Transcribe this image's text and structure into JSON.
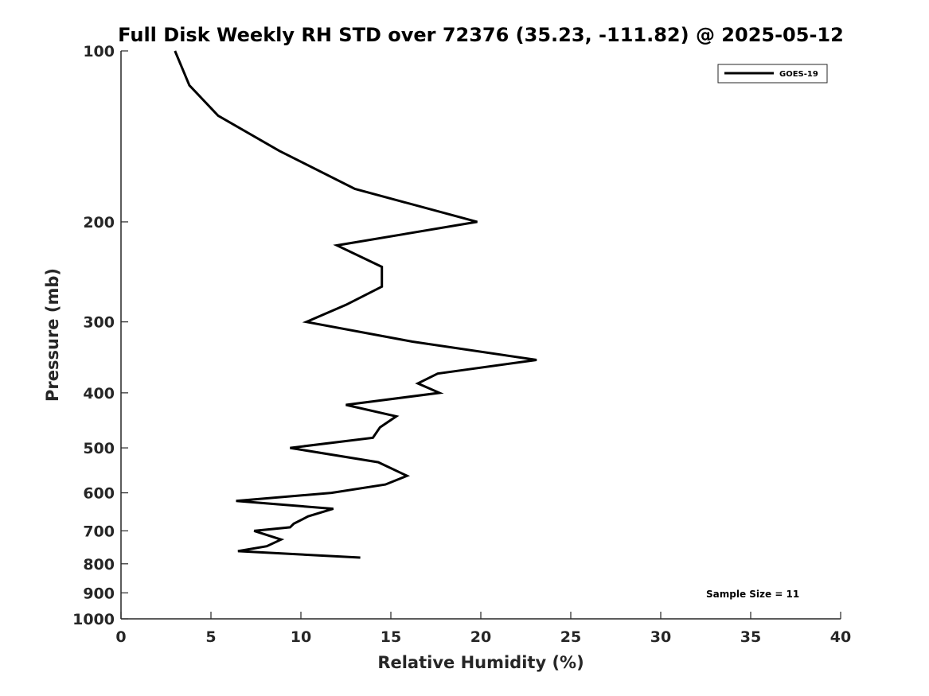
{
  "chart_data": {
    "type": "line",
    "title": "Full Disk Weekly RH STD over 72376 (35.23, -111.82) @ 2025-05-12",
    "xlabel": "Relative Humidity (%)",
    "ylabel": "Pressure (mb)",
    "xlim": [
      0,
      40
    ],
    "ylim": [
      100,
      1000
    ],
    "y_scale": "log",
    "y_reversed": true,
    "grid": false,
    "xticks": [
      0,
      5,
      10,
      15,
      20,
      25,
      30,
      35,
      40
    ],
    "yticks": [
      100,
      200,
      300,
      400,
      500,
      600,
      700,
      800,
      900,
      1000
    ],
    "legend_position": "top-right",
    "annotation": "Sample Size = 11",
    "series": [
      {
        "name": "GOES-19",
        "color": "#000000",
        "x": [
          3.0,
          3.8,
          5.4,
          8.8,
          13.0,
          19.8,
          12.0,
          14.5,
          14.5,
          12.5,
          10.3,
          16.2,
          23.1,
          17.6,
          16.5,
          17.7,
          12.5,
          15.3,
          14.4,
          14.0,
          9.4,
          14.3,
          15.9,
          14.7,
          11.7,
          6.4,
          11.8,
          10.4,
          9.6,
          9.4,
          7.4,
          8.9,
          8.1,
          6.5,
          13.3
        ],
        "y": [
          100,
          115,
          130,
          150,
          175,
          200,
          220,
          240,
          260,
          280,
          300,
          325,
          350,
          370,
          385,
          400,
          420,
          440,
          460,
          480,
          500,
          530,
          560,
          580,
          600,
          620,
          640,
          660,
          680,
          690,
          700,
          725,
          745,
          760,
          780
        ]
      }
    ]
  }
}
